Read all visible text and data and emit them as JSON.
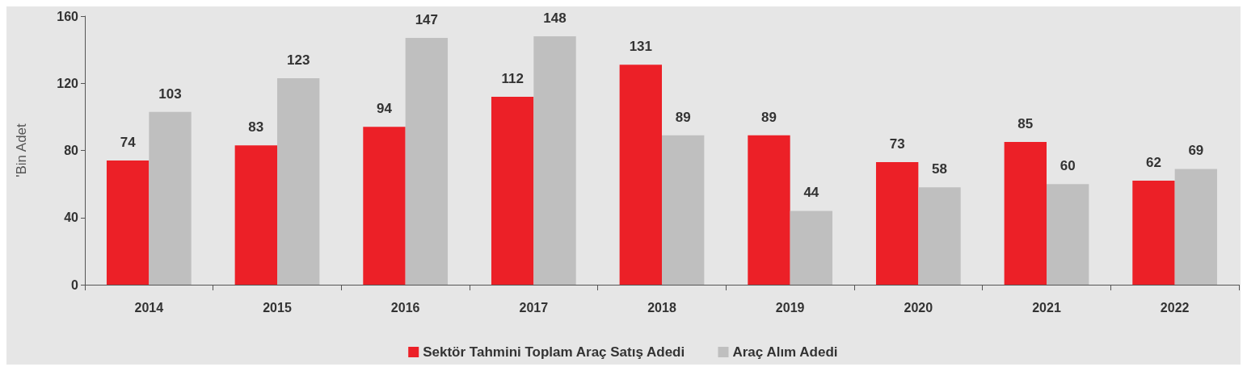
{
  "chart_data": {
    "type": "bar",
    "ylabel": "'Bin Adet",
    "categories": [
      "2014",
      "2015",
      "2016",
      "2017",
      "2018",
      "2019",
      "2020",
      "2021",
      "2022"
    ],
    "series": [
      {
        "name": "Sektör Tahmini Toplam Araç Satış Adedi",
        "color": "#ec2027",
        "values": [
          74,
          83,
          94,
          112,
          131,
          89,
          73,
          85,
          62
        ]
      },
      {
        "name": "Araç Alım Adedi",
        "color": "#bfbfbf",
        "values": [
          103,
          123,
          147,
          148,
          89,
          44,
          58,
          60,
          69
        ]
      }
    ],
    "ylim": [
      0,
      160
    ],
    "yticks": [
      0,
      40,
      80,
      120,
      160
    ],
    "grid": false,
    "legend": "bottom",
    "data_labels": true
  }
}
